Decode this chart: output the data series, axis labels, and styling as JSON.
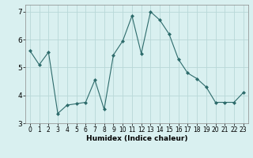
{
  "x": [
    0,
    1,
    2,
    3,
    4,
    5,
    6,
    7,
    8,
    9,
    10,
    11,
    12,
    13,
    14,
    15,
    16,
    17,
    18,
    19,
    20,
    21,
    22,
    23
  ],
  "y": [
    5.6,
    5.1,
    5.55,
    3.35,
    3.65,
    3.7,
    3.75,
    4.55,
    3.5,
    5.45,
    5.95,
    6.85,
    5.5,
    7.0,
    6.7,
    6.2,
    5.3,
    4.8,
    4.6,
    4.3,
    3.75,
    3.75,
    3.75,
    4.1
  ],
  "line_color": "#2d6b6b",
  "marker": "D",
  "marker_size": 2,
  "bg_color": "#d9f0f0",
  "grid_color": "#b8d8d8",
  "xlabel": "Humidex (Indice chaleur)",
  "xlim": [
    -0.5,
    23.5
  ],
  "ylim": [
    3.0,
    7.25
  ],
  "yticks": [
    3,
    4,
    5,
    6,
    7
  ],
  "xticks": [
    0,
    1,
    2,
    3,
    4,
    5,
    6,
    7,
    8,
    9,
    10,
    11,
    12,
    13,
    14,
    15,
    16,
    17,
    18,
    19,
    20,
    21,
    22,
    23
  ],
  "tick_fontsize": 5.5,
  "xlabel_fontsize": 6.5,
  "spine_color": "#888888"
}
